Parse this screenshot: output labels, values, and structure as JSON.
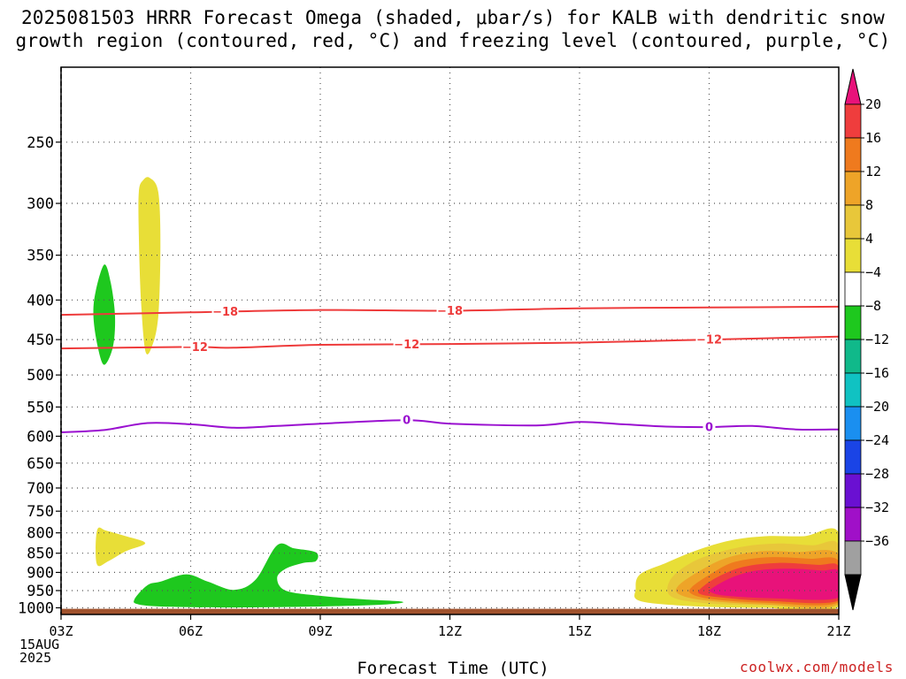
{
  "chart_data": {
    "type": "heatmap",
    "title_line1": "2025081503 HRRR Forecast Omega (shaded, μbar/s) for KALB with dendritic snow",
    "title_line2": "growth region (contoured, red, °C) and freezing level (contoured, purple, °C)",
    "xlabel": "Forecast Time (UTC)",
    "x_ticks": [
      "03Z",
      "06Z",
      "09Z",
      "12Z",
      "15Z",
      "18Z",
      "21Z"
    ],
    "x_tick_hours": [
      3,
      6,
      9,
      12,
      15,
      18,
      21
    ],
    "x_date_lines": [
      "15AUG",
      "2025"
    ],
    "xlim": [
      3,
      21
    ],
    "y_ticks": [
      250,
      300,
      350,
      400,
      450,
      500,
      550,
      600,
      650,
      700,
      750,
      800,
      850,
      900,
      950,
      1000
    ],
    "y_axis": "pressure (hPa), log scale, decreasing upward",
    "ylim": [
      1020,
      200
    ],
    "grid": true,
    "colorbar": {
      "labels": [
        "20",
        "16",
        "12",
        "8",
        "4",
        "−4",
        "−8",
        "−12",
        "−16",
        "−20",
        "−24",
        "−28",
        "−32",
        "−36"
      ],
      "colors": [
        "#ef3d3d",
        "#ef7a1e",
        "#eea428",
        "#e8c73a",
        "#e8de37",
        "#ffffff",
        "#1ec81e",
        "#10b98a",
        "#10c2c2",
        "#1a8ff0",
        "#1a44e6",
        "#6a10d2",
        "#a010c8",
        "#a0a0a0"
      ],
      "top_arrow_color": "#e8127a",
      "bottom_arrow_color": "#000000"
    },
    "contours": [
      {
        "name": "-18",
        "color": "#ee3b3b",
        "points": [
          [
            3,
            418
          ],
          [
            6,
            415
          ],
          [
            9,
            412
          ],
          [
            12,
            413
          ],
          [
            15,
            410
          ],
          [
            18,
            409
          ],
          [
            21,
            408
          ]
        ],
        "labels": [
          {
            "text": "−18",
            "x": 6.8
          },
          {
            "text": "−18",
            "x": 12.0
          }
        ]
      },
      {
        "name": "-12",
        "color": "#ee3b3b",
        "points": [
          [
            3,
            462
          ],
          [
            6,
            460
          ],
          [
            7,
            461
          ],
          [
            9,
            457
          ],
          [
            12,
            456
          ],
          [
            15,
            454
          ],
          [
            18,
            450
          ],
          [
            21,
            446
          ]
        ],
        "labels": [
          {
            "text": "−12",
            "x": 6.1
          },
          {
            "text": "−12",
            "x": 11.0
          },
          {
            "text": "−12",
            "x": 18.0
          }
        ]
      },
      {
        "name": "0",
        "color": "#9a10d0",
        "points": [
          [
            3,
            593
          ],
          [
            4,
            589
          ],
          [
            5,
            577
          ],
          [
            6,
            579
          ],
          [
            7,
            585
          ],
          [
            8,
            582
          ],
          [
            9,
            578
          ],
          [
            11,
            572
          ],
          [
            12,
            578
          ],
          [
            14,
            581
          ],
          [
            15,
            575
          ],
          [
            16,
            579
          ],
          [
            17,
            583
          ],
          [
            18,
            584
          ],
          [
            19,
            582
          ],
          [
            20,
            588
          ],
          [
            21,
            588
          ]
        ],
        "labels": [
          {
            "text": "0",
            "x": 11.0
          },
          {
            "text": "0",
            "x": 18.0
          }
        ]
      }
    ],
    "shaded_regions": [
      {
        "name": "omega-negative-4-to-8-upper",
        "color": "#1ec81e",
        "points": [
          [
            4.0,
            360
          ],
          [
            4.15,
            380
          ],
          [
            4.25,
            420
          ],
          [
            4.2,
            460
          ],
          [
            4.0,
            485
          ],
          [
            3.85,
            460
          ],
          [
            3.75,
            420
          ],
          [
            3.8,
            390
          ]
        ]
      },
      {
        "name": "omega-positive-4-to-8-upper",
        "color": "#e8de37",
        "points": [
          [
            5.05,
            278
          ],
          [
            5.25,
            290
          ],
          [
            5.3,
            340
          ],
          [
            5.25,
            420
          ],
          [
            5.1,
            460
          ],
          [
            4.95,
            465
          ],
          [
            4.85,
            400
          ],
          [
            4.8,
            330
          ],
          [
            4.8,
            290
          ],
          [
            4.9,
            280
          ]
        ]
      },
      {
        "name": "omega-positive-4-to-8-low",
        "color": "#e8de37",
        "points": [
          [
            3.85,
            790
          ],
          [
            4.05,
            795
          ],
          [
            4.5,
            808
          ],
          [
            4.95,
            825
          ],
          [
            4.5,
            845
          ],
          [
            4.1,
            870
          ],
          [
            3.85,
            882
          ],
          [
            3.8,
            840
          ]
        ]
      },
      {
        "name": "omega-negative-4-to-8-low",
        "color": "#1ec81e",
        "points": [
          [
            4.7,
            975
          ],
          [
            5.0,
            935
          ],
          [
            5.3,
            925
          ],
          [
            5.9,
            905
          ],
          [
            6.4,
            925
          ],
          [
            7.0,
            948
          ],
          [
            7.5,
            920
          ],
          [
            8.0,
            830
          ],
          [
            8.4,
            838
          ],
          [
            8.9,
            848
          ],
          [
            8.9,
            870
          ],
          [
            8.6,
            875
          ],
          [
            8.2,
            890
          ],
          [
            8.0,
            915
          ],
          [
            8.2,
            950
          ],
          [
            9.0,
            965
          ],
          [
            10.0,
            975
          ],
          [
            10.9,
            982
          ],
          [
            10.5,
            990
          ],
          [
            9.0,
            996
          ],
          [
            7.0,
            999
          ],
          [
            5.5,
            997
          ],
          [
            4.8,
            990
          ]
        ]
      },
      {
        "name": "omega-positive-4-to-8",
        "color": "#e8de37",
        "points": [
          [
            16.4,
            905
          ],
          [
            17.0,
            875
          ],
          [
            17.7,
            843
          ],
          [
            18.5,
            818
          ],
          [
            19.3,
            808
          ],
          [
            20.2,
            808
          ],
          [
            21,
            800
          ],
          [
            21,
            995
          ],
          [
            19.3,
            1000
          ],
          [
            17.6,
            995
          ],
          [
            16.4,
            980
          ],
          [
            16.3,
            945
          ]
        ]
      },
      {
        "name": "omega-positive-8-to-12",
        "color": "#e8c73a",
        "points": [
          [
            17.1,
            920
          ],
          [
            17.5,
            880
          ],
          [
            18.0,
            855
          ],
          [
            18.8,
            833
          ],
          [
            19.6,
            826
          ],
          [
            20.4,
            830
          ],
          [
            21,
            830
          ],
          [
            21,
            990
          ],
          [
            19.3,
            993
          ],
          [
            17.8,
            985
          ],
          [
            17.1,
            965
          ]
        ]
      },
      {
        "name": "omega-positive-12-to-16",
        "color": "#eea428",
        "points": [
          [
            17.3,
            935
          ],
          [
            17.8,
            895
          ],
          [
            18.4,
            862
          ],
          [
            19.2,
            845
          ],
          [
            20.0,
            847
          ],
          [
            21,
            853
          ],
          [
            21,
            988
          ],
          [
            19.3,
            990
          ],
          [
            17.9,
            978
          ],
          [
            17.3,
            960
          ]
        ]
      },
      {
        "name": "omega-positive-16-to-20-orange",
        "color": "#ef7a1e",
        "points": [
          [
            17.6,
            940
          ],
          [
            18.1,
            900
          ],
          [
            18.6,
            872
          ],
          [
            19.4,
            860
          ],
          [
            20.3,
            864
          ],
          [
            21,
            870
          ],
          [
            21,
            983
          ],
          [
            19.3,
            985
          ],
          [
            18.1,
            975
          ],
          [
            17.6,
            960
          ]
        ]
      },
      {
        "name": "omega-positive-16-to-20",
        "color": "#ef3d3d",
        "points": [
          [
            17.8,
            945
          ],
          [
            18.2,
            912
          ],
          [
            18.8,
            885
          ],
          [
            19.6,
            875
          ],
          [
            20.5,
            880
          ],
          [
            21,
            884
          ],
          [
            21,
            978
          ],
          [
            19.4,
            980
          ],
          [
            18.3,
            970
          ],
          [
            17.8,
            960
          ]
        ]
      },
      {
        "name": "omega-positive-gt-20",
        "color": "#e8127a",
        "points": [
          [
            18.05,
            945
          ],
          [
            18.5,
            915
          ],
          [
            19.1,
            895
          ],
          [
            19.9,
            890
          ],
          [
            20.6,
            895
          ],
          [
            21,
            897
          ],
          [
            21,
            970
          ],
          [
            19.5,
            972
          ],
          [
            18.4,
            965
          ],
          [
            18.05,
            955
          ]
        ]
      }
    ],
    "terrain": {
      "color": "#a0522d",
      "top_pressure": 1003
    }
  },
  "footer": {
    "credit": "coolwx.com/models"
  }
}
